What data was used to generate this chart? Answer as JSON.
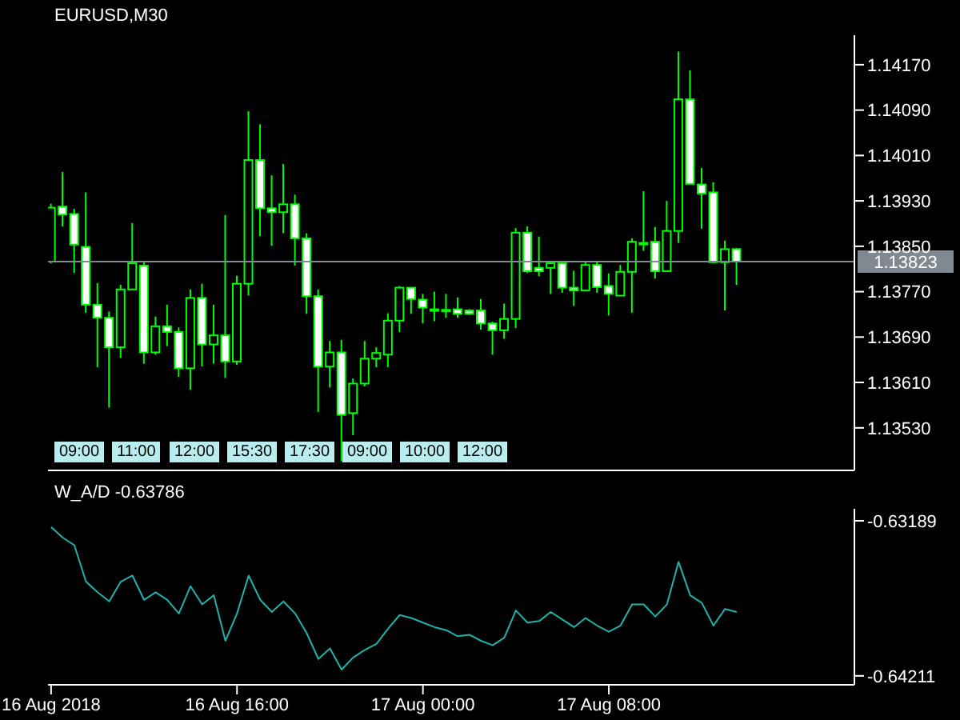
{
  "chart_data": [
    {
      "type": "candlestick",
      "title": "EURUSD,M30",
      "color": "#00ff00",
      "x": [
        "2018-08-16T08:00",
        "2018-08-16T08:30",
        "2018-08-16T09:00",
        "2018-08-16T09:30",
        "2018-08-16T10:00",
        "2018-08-16T10:30",
        "2018-08-16T11:00",
        "2018-08-16T11:30",
        "2018-08-16T12:00",
        "2018-08-16T12:30",
        "2018-08-16T13:00",
        "2018-08-16T13:30",
        "2018-08-16T14:00",
        "2018-08-16T14:30",
        "2018-08-16T15:00",
        "2018-08-16T15:30",
        "2018-08-16T16:00",
        "2018-08-16T16:30",
        "2018-08-16T17:00",
        "2018-08-16T17:30",
        "2018-08-16T18:00",
        "2018-08-16T18:30",
        "2018-08-16T19:00",
        "2018-08-16T19:30",
        "2018-08-16T20:00",
        "2018-08-16T20:30",
        "2018-08-16T21:00",
        "2018-08-16T21:30",
        "2018-08-16T22:00",
        "2018-08-16T22:30",
        "2018-08-16T23:00",
        "2018-08-16T23:30",
        "2018-08-17T00:00",
        "2018-08-17T00:30",
        "2018-08-17T01:00",
        "2018-08-17T01:30",
        "2018-08-17T02:00",
        "2018-08-17T02:30",
        "2018-08-17T03:00",
        "2018-08-17T03:30",
        "2018-08-17T04:00",
        "2018-08-17T04:30",
        "2018-08-17T05:00",
        "2018-08-17T05:30",
        "2018-08-17T06:00",
        "2018-08-17T06:30",
        "2018-08-17T07:00",
        "2018-08-17T07:30",
        "2018-08-17T08:00",
        "2018-08-17T08:30",
        "2018-08-17T09:00",
        "2018-08-17T09:30",
        "2018-08-17T10:00",
        "2018-08-17T10:30",
        "2018-08-17T11:00",
        "2018-08-17T11:30",
        "2018-08-17T12:00",
        "2018-08-17T12:30",
        "2018-08-17T13:00",
        "2018-08-17T13:30"
      ],
      "ohlc": [
        [
          1.13823,
          1.13925,
          1.1382,
          1.13918
        ],
        [
          1.1392,
          1.13981,
          1.13885,
          1.13906
        ],
        [
          1.13907,
          1.13916,
          1.13803,
          1.13853
        ],
        [
          1.13849,
          1.13945,
          1.13733,
          1.13747
        ],
        [
          1.13747,
          1.13785,
          1.13637,
          1.13724
        ],
        [
          1.13724,
          1.13735,
          1.13566,
          1.13672
        ],
        [
          1.13672,
          1.13782,
          1.13653,
          1.13774
        ],
        [
          1.13774,
          1.13891,
          1.13774,
          1.1382
        ],
        [
          1.13816,
          1.13823,
          1.13643,
          1.13663
        ],
        [
          1.13663,
          1.13726,
          1.13659,
          1.13709
        ],
        [
          1.13709,
          1.13747,
          1.13674,
          1.13699
        ],
        [
          1.13699,
          1.13707,
          1.1362,
          1.13635
        ],
        [
          1.13635,
          1.13774,
          1.13597,
          1.13759
        ],
        [
          1.13759,
          1.13784,
          1.13638,
          1.13677
        ],
        [
          1.13677,
          1.13747,
          1.13643,
          1.13693
        ],
        [
          1.13693,
          1.13905,
          1.13618,
          1.13647
        ],
        [
          1.13647,
          1.13798,
          1.13641,
          1.13784
        ],
        [
          1.13784,
          1.14088,
          1.13763,
          1.14002
        ],
        [
          1.14002,
          1.14065,
          1.13868,
          1.13917
        ],
        [
          1.13917,
          1.13975,
          1.13851,
          1.1391
        ],
        [
          1.1391,
          1.13995,
          1.13873,
          1.13924
        ],
        [
          1.13924,
          1.13941,
          1.13816,
          1.13864
        ],
        [
          1.13864,
          1.13873,
          1.13731,
          1.13762
        ],
        [
          1.13762,
          1.13774,
          1.13558,
          1.13638
        ],
        [
          1.13638,
          1.13683,
          1.13601,
          1.13663
        ],
        [
          1.13663,
          1.13685,
          1.13471,
          1.13553
        ],
        [
          1.13556,
          1.13617,
          1.13517,
          1.13608
        ],
        [
          1.13608,
          1.13683,
          1.13603,
          1.13652
        ],
        [
          1.13652,
          1.13672,
          1.13637,
          1.13662
        ],
        [
          1.13659,
          1.13732,
          1.13637,
          1.13719
        ],
        [
          1.13719,
          1.1378,
          1.13699,
          1.13777
        ],
        [
          1.13777,
          1.13778,
          1.13731,
          1.13757
        ],
        [
          1.13756,
          1.13766,
          1.13714,
          1.13742
        ],
        [
          1.13739,
          1.1377,
          1.13718,
          1.13739
        ],
        [
          1.13738,
          1.13766,
          1.13724,
          1.13738
        ],
        [
          1.13739,
          1.1376,
          1.13724,
          1.13731
        ],
        [
          1.13737,
          1.13739,
          1.13729,
          1.13731
        ],
        [
          1.13737,
          1.13757,
          1.13703,
          1.13714
        ],
        [
          1.13714,
          1.13717,
          1.13659,
          1.13702
        ],
        [
          1.13702,
          1.13749,
          1.13687,
          1.13722
        ],
        [
          1.13722,
          1.13882,
          1.13706,
          1.13874
        ],
        [
          1.13874,
          1.13885,
          1.13803,
          1.13806
        ],
        [
          1.13812,
          1.13867,
          1.13797,
          1.13806
        ],
        [
          1.13812,
          1.13822,
          1.13766,
          1.1382
        ],
        [
          1.1382,
          1.13822,
          1.13768,
          1.13777
        ],
        [
          1.13777,
          1.13807,
          1.13745,
          1.13772
        ],
        [
          1.13772,
          1.13824,
          1.13772,
          1.13817
        ],
        [
          1.13817,
          1.13822,
          1.13768,
          1.13778
        ],
        [
          1.1378,
          1.13802,
          1.13728,
          1.13766
        ],
        [
          1.13763,
          1.13817,
          1.13763,
          1.13805
        ],
        [
          1.13805,
          1.13864,
          1.13733,
          1.13858
        ],
        [
          1.13856,
          1.13947,
          1.13842,
          1.13856
        ],
        [
          1.13858,
          1.13884,
          1.13793,
          1.13806
        ],
        [
          1.13806,
          1.1393,
          1.13806,
          1.13877
        ],
        [
          1.13877,
          1.14193,
          1.13856,
          1.14109
        ],
        [
          1.14109,
          1.1416,
          1.1396,
          1.1396
        ],
        [
          1.13959,
          1.13988,
          1.13881,
          1.13943
        ],
        [
          1.13945,
          1.13963,
          1.1382,
          1.13822
        ],
        [
          1.13822,
          1.1386,
          1.13737,
          1.13845
        ],
        [
          1.13845,
          1.13847,
          1.13782,
          1.13823
        ]
      ],
      "xlim": [
        "2018-08-16T07:52",
        "2018-08-17T18:34"
      ],
      "ylim": [
        1.13455,
        1.14222
      ],
      "yticks": [
        {
          "value": 1.1353,
          "label": "1.13530"
        },
        {
          "value": 1.1361,
          "label": "1.13610"
        },
        {
          "value": 1.1369,
          "label": "1.13690"
        },
        {
          "value": 1.1377,
          "label": "1.13770"
        },
        {
          "value": 1.1385,
          "label": "1.13850"
        },
        {
          "value": 1.1393,
          "label": "1.13930"
        },
        {
          "value": 1.1401,
          "label": "1.14010"
        },
        {
          "value": 1.1409,
          "label": "1.14090"
        },
        {
          "value": 1.1417,
          "label": "1.14170"
        }
      ],
      "tick_labels": "y",
      "ref_lines": [
        {
          "axis": "y",
          "value": 1.13823,
          "label": "1.13823",
          "color": "#808890"
        }
      ],
      "annotations": [
        "09:00",
        "11:00",
        "12:00",
        "15:30",
        "17:30",
        "09:00",
        "10:00",
        "12:00"
      ]
    },
    {
      "type": "line",
      "title": "W_A/D -0.63786",
      "marker": "none",
      "x": [
        "2018-08-16T08:00",
        "2018-08-16T08:30",
        "2018-08-16T09:00",
        "2018-08-16T09:30",
        "2018-08-16T10:00",
        "2018-08-16T10:30",
        "2018-08-16T11:00",
        "2018-08-16T11:30",
        "2018-08-16T12:00",
        "2018-08-16T12:30",
        "2018-08-16T13:00",
        "2018-08-16T13:30",
        "2018-08-16T14:00",
        "2018-08-16T14:30",
        "2018-08-16T15:00",
        "2018-08-16T15:30",
        "2018-08-16T16:00",
        "2018-08-16T16:30",
        "2018-08-16T17:00",
        "2018-08-16T17:30",
        "2018-08-16T18:00",
        "2018-08-16T18:30",
        "2018-08-16T19:00",
        "2018-08-16T19:30",
        "2018-08-16T20:00",
        "2018-08-16T20:30",
        "2018-08-16T21:00",
        "2018-08-16T21:30",
        "2018-08-16T22:00",
        "2018-08-16T22:30",
        "2018-08-16T23:00",
        "2018-08-16T23:30",
        "2018-08-17T00:00",
        "2018-08-17T00:30",
        "2018-08-17T01:00",
        "2018-08-17T01:30",
        "2018-08-17T02:00",
        "2018-08-17T02:30",
        "2018-08-17T03:00",
        "2018-08-17T03:30",
        "2018-08-17T04:00",
        "2018-08-17T04:30",
        "2018-08-17T05:00",
        "2018-08-17T05:30",
        "2018-08-17T06:00",
        "2018-08-17T06:30",
        "2018-08-17T07:00",
        "2018-08-17T07:30",
        "2018-08-17T08:00",
        "2018-08-17T08:30",
        "2018-08-17T09:00",
        "2018-08-17T09:30",
        "2018-08-17T10:00",
        "2018-08-17T10:30",
        "2018-08-17T11:00",
        "2018-08-17T11:30",
        "2018-08-17T12:00",
        "2018-08-17T12:30",
        "2018-08-17T13:00",
        "2018-08-17T13:30"
      ],
      "series": [
        {
          "color": "#20b2aa",
          "values": [
            -0.6323,
            -0.633,
            -0.6335,
            -0.6359,
            -0.6366,
            -0.6372,
            -0.6359,
            -0.6355,
            -0.6371,
            -0.6366,
            -0.6371,
            -0.638,
            -0.6362,
            -0.6374,
            -0.6368,
            -0.6398,
            -0.638,
            -0.6355,
            -0.6371,
            -0.6379,
            -0.6372,
            -0.638,
            -0.6393,
            -0.641,
            -0.6403,
            -0.6417,
            -0.6409,
            -0.6404,
            -0.64,
            -0.639,
            -0.6381,
            -0.6383,
            -0.6386,
            -0.6389,
            -0.6391,
            -0.6395,
            -0.6394,
            -0.6398,
            -0.6401,
            -0.6396,
            -0.6378,
            -0.6386,
            -0.6385,
            -0.6379,
            -0.6384,
            -0.6389,
            -0.6383,
            -0.6388,
            -0.6392,
            -0.6388,
            -0.6374,
            -0.6374,
            -0.6382,
            -0.6374,
            -0.6346,
            -0.6368,
            -0.6373,
            -0.6388,
            -0.6377,
            -0.6379
          ]
        }
      ],
      "xlim": [
        "2018-08-16T07:52",
        "2018-08-17T18:34"
      ],
      "xticks": [
        {
          "value": "2018-08-16T08:00",
          "label": "16 Aug 2018"
        },
        {
          "value": "2018-08-16T16:00",
          "label": "16 Aug 16:00"
        },
        {
          "value": "2018-08-17T00:00",
          "label": "17 Aug 00:00"
        },
        {
          "value": "2018-08-17T08:00",
          "label": "17 Aug 08:00"
        }
      ],
      "ylim": [
        -0.6427,
        -0.6311
      ],
      "yticks": [
        -0.63189,
        -0.64211
      ]
    }
  ]
}
